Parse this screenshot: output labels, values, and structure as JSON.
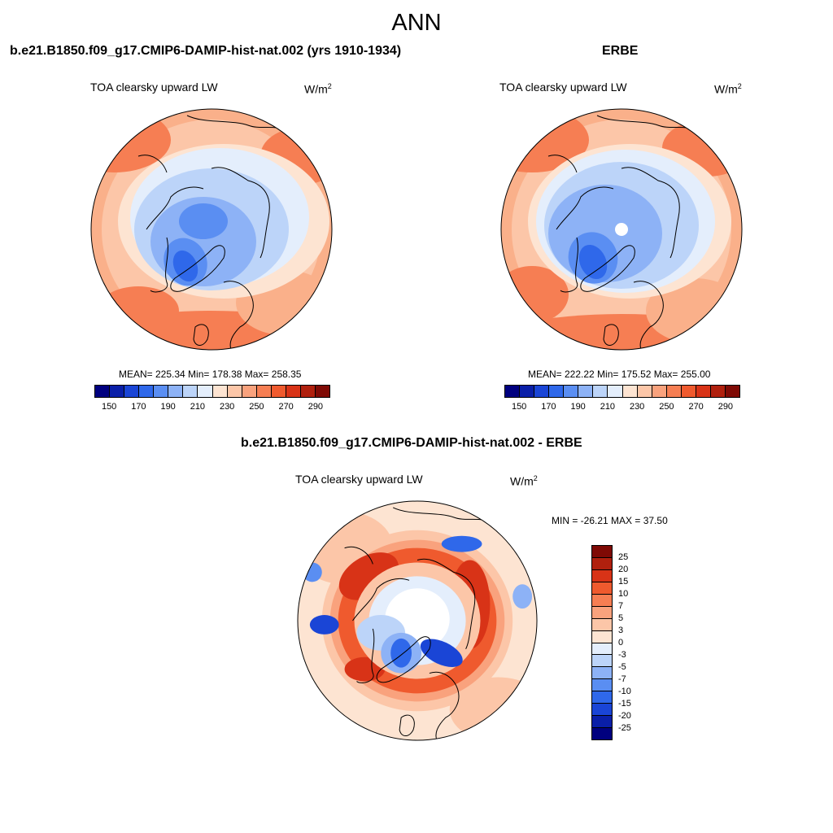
{
  "figure_title": "ANN",
  "panels": [
    {
      "title": "b.e21.B1850.f09_g17.CMIP6-DAMIP-hist-nat.002 (yrs 1910-1934)",
      "variable": "TOA clearsky upward LW",
      "units_base": "W/m",
      "units_exp": "2",
      "stats": "MEAN= 225.34  Min= 178.38  Max= 258.35"
    },
    {
      "title": "ERBE",
      "variable": "TOA clearsky upward LW",
      "units_base": "W/m",
      "units_exp": "2",
      "stats": "MEAN= 222.22  Min= 175.52  Max= 255.00"
    },
    {
      "title": "b.e21.B1850.f09_g17.CMIP6-DAMIP-hist-nat.002 - ERBE",
      "variable": "TOA clearsky upward LW",
      "units_base": "W/m",
      "units_exp": "2",
      "stats": "MIN = -26.21 MAX =  37.50"
    }
  ],
  "colorbar_main": {
    "colors": [
      "#00007f",
      "#0a1fa8",
      "#1a45d6",
      "#2f68ea",
      "#5a8ef2",
      "#8db2f6",
      "#bcd4f9",
      "#e4eefc",
      "#fde4d2",
      "#fcc6a8",
      "#f9a27d",
      "#f67e53",
      "#ef5a2e",
      "#d83317",
      "#b0200e",
      "#7f0a05"
    ],
    "labels": [
      "150",
      "170",
      "190",
      "210",
      "230",
      "250",
      "270",
      "290"
    ]
  },
  "colorbar_diff": {
    "colors": [
      "#7f0a05",
      "#b0200e",
      "#d83317",
      "#ef5a2e",
      "#f67e53",
      "#f9a27d",
      "#fcc6a8",
      "#fde4d2",
      "#e4eefc",
      "#bcd4f9",
      "#8db2f6",
      "#5a8ef2",
      "#2f68ea",
      "#1a45d6",
      "#0a1fa8",
      "#00007f"
    ],
    "labels": [
      "25",
      "20",
      "15",
      "10",
      "7",
      "5",
      "3",
      "0",
      "-3",
      "-5",
      "-7",
      "-10",
      "-15",
      "-20",
      "-25"
    ]
  }
}
